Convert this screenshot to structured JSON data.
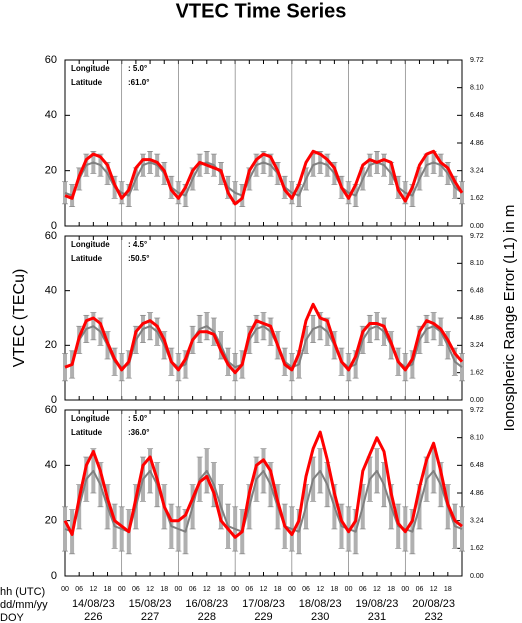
{
  "figure": {
    "title": "VTEC Time Series",
    "ylabel": "VTEC (TECu)",
    "y2label": "Ionospheric Range Error (L1) in m",
    "row_labels": [
      "hh (UTC)",
      "dd/mm/yy",
      "DOY"
    ],
    "dates": [
      "14/08/23",
      "15/08/23",
      "16/08/23",
      "17/08/23",
      "18/08/23",
      "19/08/23",
      "20/08/23"
    ],
    "doy": [
      "226",
      "227",
      "228",
      "229",
      "230",
      "231",
      "232"
    ],
    "xlim": [
      0,
      168
    ],
    "xticks": [
      {
        "value": 0,
        "label": "00"
      },
      {
        "value": 6,
        "label": "06"
      },
      {
        "value": 12,
        "label": "12"
      },
      {
        "value": 18,
        "label": "18"
      },
      {
        "value": 24,
        "label": "00"
      },
      {
        "value": 30,
        "label": "06"
      },
      {
        "value": 36,
        "label": "12"
      },
      {
        "value": 42,
        "label": "18"
      },
      {
        "value": 48,
        "label": "00"
      },
      {
        "value": 54,
        "label": "06"
      },
      {
        "value": 60,
        "label": "12"
      },
      {
        "value": 66,
        "label": "18"
      },
      {
        "value": 72,
        "label": "00"
      },
      {
        "value": 78,
        "label": "06"
      },
      {
        "value": 84,
        "label": "12"
      },
      {
        "value": 90,
        "label": "18"
      },
      {
        "value": 96,
        "label": "00"
      },
      {
        "value": 102,
        "label": "06"
      },
      {
        "value": 108,
        "label": "12"
      },
      {
        "value": 114,
        "label": "18"
      },
      {
        "value": 120,
        "label": "00"
      },
      {
        "value": 126,
        "label": "06"
      },
      {
        "value": 132,
        "label": "12"
      },
      {
        "value": 138,
        "label": "18"
      },
      {
        "value": 144,
        "label": "00"
      },
      {
        "value": 150,
        "label": "06"
      },
      {
        "value": 156,
        "label": "12"
      },
      {
        "value": 162,
        "label": "18"
      }
    ]
  },
  "chart_data": [
    {
      "type": "line",
      "longitude_label": "Longitude",
      "longitude": ":  5.0°",
      "latitude_label": "Latitude",
      "latitude": ":61.0°",
      "ylim": [
        0,
        60
      ],
      "yticks": [
        0,
        20,
        40,
        60
      ],
      "y2lim": [
        0,
        9.72
      ],
      "y2ticks": [
        {
          "value": 0,
          "label": "0.00"
        },
        1.62,
        3.24,
        4.86,
        6.48,
        {
          "value": 8.1,
          "label": "8.10"
        },
        9.72
      ],
      "x": [
        0,
        3,
        6,
        9,
        12,
        15,
        18,
        21,
        24,
        27,
        30,
        33,
        36,
        39,
        42,
        45,
        48,
        51,
        54,
        57,
        60,
        63,
        66,
        69,
        72,
        75,
        78,
        81,
        84,
        87,
        90,
        93,
        96,
        99,
        102,
        105,
        108,
        111,
        114,
        117,
        120,
        123,
        126,
        129,
        132,
        135,
        138,
        141,
        144,
        147,
        150,
        153,
        156,
        159,
        162,
        165,
        168
      ],
      "error": 4,
      "series": [
        {
          "color": "#808080",
          "values": [
            12,
            11,
            17,
            22,
            23,
            22,
            19,
            14,
            12,
            11,
            17,
            22,
            23,
            22,
            19,
            14,
            12,
            11,
            17,
            22,
            23,
            22,
            19,
            14,
            12,
            11,
            17,
            22,
            23,
            22,
            19,
            14,
            12,
            11,
            17,
            22,
            23,
            22,
            19,
            14,
            12,
            11,
            17,
            22,
            23,
            22,
            19,
            14,
            12,
            11,
            17,
            22,
            23,
            22,
            19,
            14,
            12
          ]
        },
        {
          "color": "#ff0000",
          "values": [
            11,
            10,
            18,
            24,
            26,
            25,
            22,
            15,
            10,
            13,
            21,
            24,
            24,
            23,
            20,
            13,
            10,
            14,
            20,
            23,
            22,
            21,
            20,
            12,
            8,
            10,
            20,
            24,
            26,
            25,
            20,
            13,
            10,
            15,
            23,
            27,
            26,
            24,
            21,
            14,
            10,
            15,
            22,
            24,
            23,
            24,
            23,
            13,
            9,
            14,
            22,
            26,
            27,
            23,
            21,
            16,
            12
          ]
        }
      ]
    },
    {
      "type": "line",
      "longitude_label": "Longitude",
      "longitude": ":  4.5°",
      "latitude_label": "Latitude",
      "latitude": ":50.5°",
      "ylim": [
        0,
        60
      ],
      "yticks": [
        0,
        20,
        40,
        60
      ],
      "y2lim": [
        0,
        9.72
      ],
      "y2ticks": [
        {
          "value": 0,
          "label": "0.00"
        },
        1.62,
        3.24,
        4.86,
        6.48,
        {
          "value": 8.1,
          "label": "8.10"
        },
        9.72
      ],
      "x": [
        0,
        3,
        6,
        9,
        12,
        15,
        18,
        21,
        24,
        27,
        30,
        33,
        36,
        39,
        42,
        45,
        48,
        51,
        54,
        57,
        60,
        63,
        66,
        69,
        72,
        75,
        78,
        81,
        84,
        87,
        90,
        93,
        96,
        99,
        102,
        105,
        108,
        111,
        114,
        117,
        120,
        123,
        126,
        129,
        132,
        135,
        138,
        141,
        144,
        147,
        150,
        153,
        156,
        159,
        162,
        165,
        168
      ],
      "error": 5,
      "series": [
        {
          "color": "#808080",
          "values": [
            12,
            13,
            22,
            26,
            27,
            25,
            20,
            14,
            12,
            13,
            22,
            26,
            27,
            25,
            20,
            14,
            12,
            13,
            22,
            26,
            27,
            25,
            20,
            14,
            12,
            13,
            22,
            26,
            27,
            25,
            20,
            14,
            12,
            13,
            22,
            26,
            27,
            25,
            20,
            14,
            12,
            13,
            22,
            26,
            27,
            25,
            20,
            14,
            12,
            13,
            22,
            26,
            27,
            25,
            20,
            14,
            12
          ]
        },
        {
          "color": "#ff0000",
          "values": [
            12,
            13,
            23,
            29,
            30,
            28,
            21,
            15,
            11,
            14,
            25,
            28,
            29,
            27,
            22,
            14,
            11,
            15,
            22,
            25,
            25,
            24,
            18,
            13,
            10,
            13,
            24,
            29,
            28,
            27,
            20,
            13,
            11,
            17,
            29,
            35,
            30,
            29,
            21,
            14,
            11,
            16,
            25,
            28,
            28,
            27,
            21,
            14,
            11,
            15,
            25,
            29,
            28,
            26,
            22,
            17,
            14
          ]
        }
      ]
    },
    {
      "type": "line",
      "longitude_label": "Longitude",
      "longitude": ":  5.0°",
      "latitude_label": "Latitude",
      "latitude": ":36.0°",
      "ylim": [
        0,
        60
      ],
      "yticks": [
        0,
        20,
        40,
        60
      ],
      "y2lim": [
        0,
        9.72
      ],
      "y2ticks": [
        {
          "value": 0,
          "label": "0.00"
        },
        1.62,
        3.24,
        4.86,
        6.48,
        {
          "value": 8.1,
          "label": "8.10"
        },
        9.72
      ],
      "x": [
        0,
        3,
        6,
        9,
        12,
        15,
        18,
        21,
        24,
        27,
        30,
        33,
        36,
        39,
        42,
        45,
        48,
        51,
        54,
        57,
        60,
        63,
        66,
        69,
        72,
        75,
        78,
        81,
        84,
        87,
        90,
        93,
        96,
        99,
        102,
        105,
        108,
        111,
        114,
        117,
        120,
        123,
        126,
        129,
        132,
        135,
        138,
        141,
        144,
        147,
        150,
        153,
        156,
        159,
        162,
        165,
        168
      ],
      "error": 8,
      "series": [
        {
          "color": "#808080",
          "values": [
            17,
            16,
            25,
            35,
            38,
            33,
            25,
            18,
            17,
            16,
            25,
            35,
            38,
            33,
            25,
            18,
            17,
            16,
            25,
            35,
            38,
            33,
            25,
            18,
            17,
            16,
            25,
            35,
            38,
            33,
            25,
            18,
            17,
            16,
            25,
            35,
            38,
            33,
            25,
            18,
            17,
            16,
            25,
            35,
            38,
            33,
            25,
            18,
            17,
            16,
            25,
            35,
            38,
            33,
            25,
            18,
            17
          ]
        },
        {
          "color": "#ff0000",
          "values": [
            20,
            15,
            28,
            40,
            45,
            38,
            28,
            20,
            18,
            16,
            28,
            40,
            43,
            35,
            25,
            20,
            20,
            22,
            28,
            34,
            36,
            30,
            20,
            17,
            14,
            16,
            30,
            40,
            42,
            38,
            27,
            18,
            15,
            20,
            36,
            46,
            52,
            42,
            30,
            20,
            16,
            20,
            38,
            44,
            50,
            45,
            30,
            19,
            16,
            20,
            32,
            42,
            48,
            38,
            26,
            20,
            18
          ]
        }
      ]
    }
  ]
}
